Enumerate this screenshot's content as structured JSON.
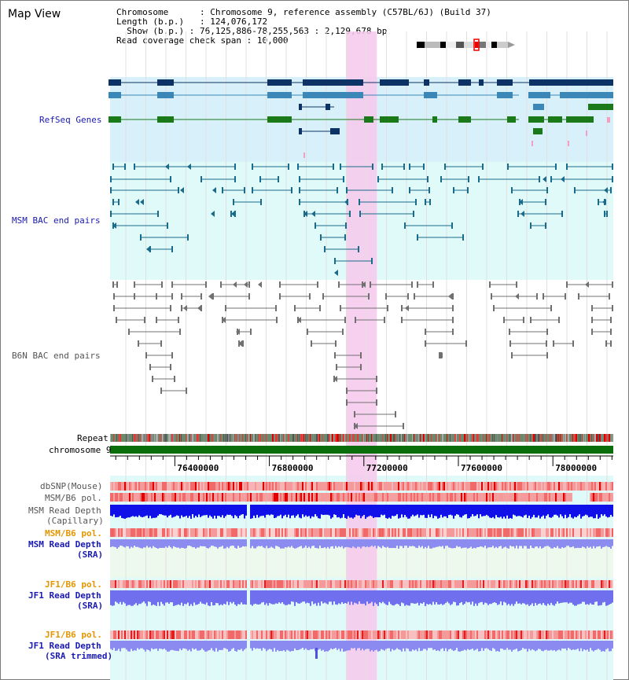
{
  "title": "Map View",
  "info": {
    "chromosome_key": "Chromosome",
    "chromosome_val": ": Chromosome 9, reference assembly (C57BL/6J) (Build 37)",
    "length_key": "Length (b.p.)",
    "length_val": ": 124,076,172",
    "show_key": "Show (b.p.)",
    "show_val": ": 76,125,886-78,255,563 : 2,129,678 bp",
    "span_key": "Read coverage check span",
    "span_val": ": 10,000"
  },
  "tracks": {
    "refseq": "RefSeq Genes",
    "msm_bac": "MSM BAC end pairs",
    "b6n_bac": "B6N BAC end pairs",
    "repeat": "Repeat",
    "chromosome": "chromosome 9",
    "dbsnp": "dbSNP(Mouse)",
    "msm_b6_pol": "MSM/B6 pol.",
    "msm_read_depth_cap_1": "MSM Read Depth",
    "msm_read_depth_cap_2": "(Capillary)",
    "msm_b6_pol_sra": "MSM/B6 pol.",
    "msm_read_depth_sra_1": "MSM Read Depth",
    "msm_read_depth_sra_2": "(SRA)",
    "jf1_b6_pol": "JF1/B6 pol.",
    "jf1_read_depth_1": "JF1 Read Depth",
    "jf1_read_depth_2": "(SRA)",
    "jf1_b6_pol_trim": "JF1/B6 pol.",
    "jf1_read_depth_trim_1": "JF1 Read Depth",
    "jf1_read_depth_trim_2": "(SRA trimmed)"
  },
  "axis": {
    "range_bp": [
      76125886,
      78255563
    ],
    "ticks": [
      "76400000",
      "76800000",
      "77200000",
      "77600000",
      "78000000"
    ],
    "tick_values": [
      76400000,
      76800000,
      77200000,
      77600000,
      78000000
    ]
  },
  "highlight_range_bp": [
    77125000,
    77255000
  ],
  "colors": {
    "refseq_bg": "#d8f0fa",
    "msm_bg": "#e0fafa",
    "highlight": "#f7c8ec",
    "gene_dark": "#0d3366",
    "gene_mid": "#3a87b8",
    "gene_green": "#1a7a1a",
    "bac_blue": "#1a6a8a",
    "bac_gray": "#707070",
    "chromosome_bar": "#0a6e0a",
    "label_blue": "#1a1ab0",
    "label_orange": "#e69500",
    "label_gray": "#333333"
  }
}
